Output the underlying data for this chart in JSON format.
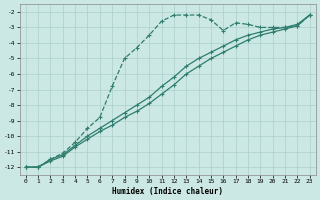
{
  "xlabel": "Humidex (Indice chaleur)",
  "bg_color": "#cce8e4",
  "grid_color": "#aad0cc",
  "line_color": "#2e7d6e",
  "xlim": [
    -0.5,
    23.5
  ],
  "ylim": [
    -12.5,
    -1.5
  ],
  "yticks": [
    -2,
    -3,
    -4,
    -5,
    -6,
    -7,
    -8,
    -9,
    -10,
    -11,
    -12
  ],
  "xticks": [
    0,
    1,
    2,
    3,
    4,
    5,
    6,
    7,
    8,
    9,
    10,
    11,
    12,
    13,
    14,
    15,
    16,
    17,
    18,
    19,
    20,
    21,
    22,
    23
  ],
  "line1_x": [
    0,
    1,
    2,
    3,
    4,
    5,
    6,
    7,
    8,
    9,
    10,
    11,
    12,
    13,
    14,
    15,
    16,
    17,
    18,
    19,
    20,
    21,
    22,
    23
  ],
  "line1_y": [
    -12.0,
    -12.0,
    -11.5,
    -11.1,
    -10.4,
    -9.5,
    -8.8,
    -6.8,
    -5.0,
    -4.3,
    -3.5,
    -2.6,
    -2.2,
    -2.2,
    -2.2,
    -2.5,
    -3.2,
    -2.7,
    -2.8,
    -3.0,
    -3.0,
    -3.0,
    -2.9,
    -2.2
  ],
  "line2_x": [
    0,
    1,
    2,
    3,
    4,
    5,
    6,
    7,
    8,
    9,
    10,
    11,
    12,
    13,
    14,
    15,
    16,
    17,
    18,
    19,
    20,
    21,
    22,
    23
  ],
  "line2_y": [
    -12.0,
    -12.0,
    -11.5,
    -11.2,
    -10.6,
    -10.0,
    -9.5,
    -9.0,
    -8.5,
    -8.0,
    -7.5,
    -6.8,
    -6.2,
    -5.5,
    -5.0,
    -4.6,
    -4.2,
    -3.8,
    -3.5,
    -3.3,
    -3.1,
    -3.0,
    -2.8,
    -2.2
  ],
  "line3_x": [
    0,
    1,
    2,
    3,
    4,
    5,
    6,
    7,
    8,
    9,
    10,
    11,
    12,
    13,
    14,
    15,
    16,
    17,
    18,
    19,
    20,
    21,
    22,
    23
  ],
  "line3_y": [
    -12.0,
    -12.0,
    -11.6,
    -11.3,
    -10.7,
    -10.2,
    -9.7,
    -9.3,
    -8.8,
    -8.4,
    -7.9,
    -7.3,
    -6.7,
    -6.0,
    -5.5,
    -5.0,
    -4.6,
    -4.2,
    -3.8,
    -3.5,
    -3.3,
    -3.1,
    -2.9,
    -2.2
  ]
}
